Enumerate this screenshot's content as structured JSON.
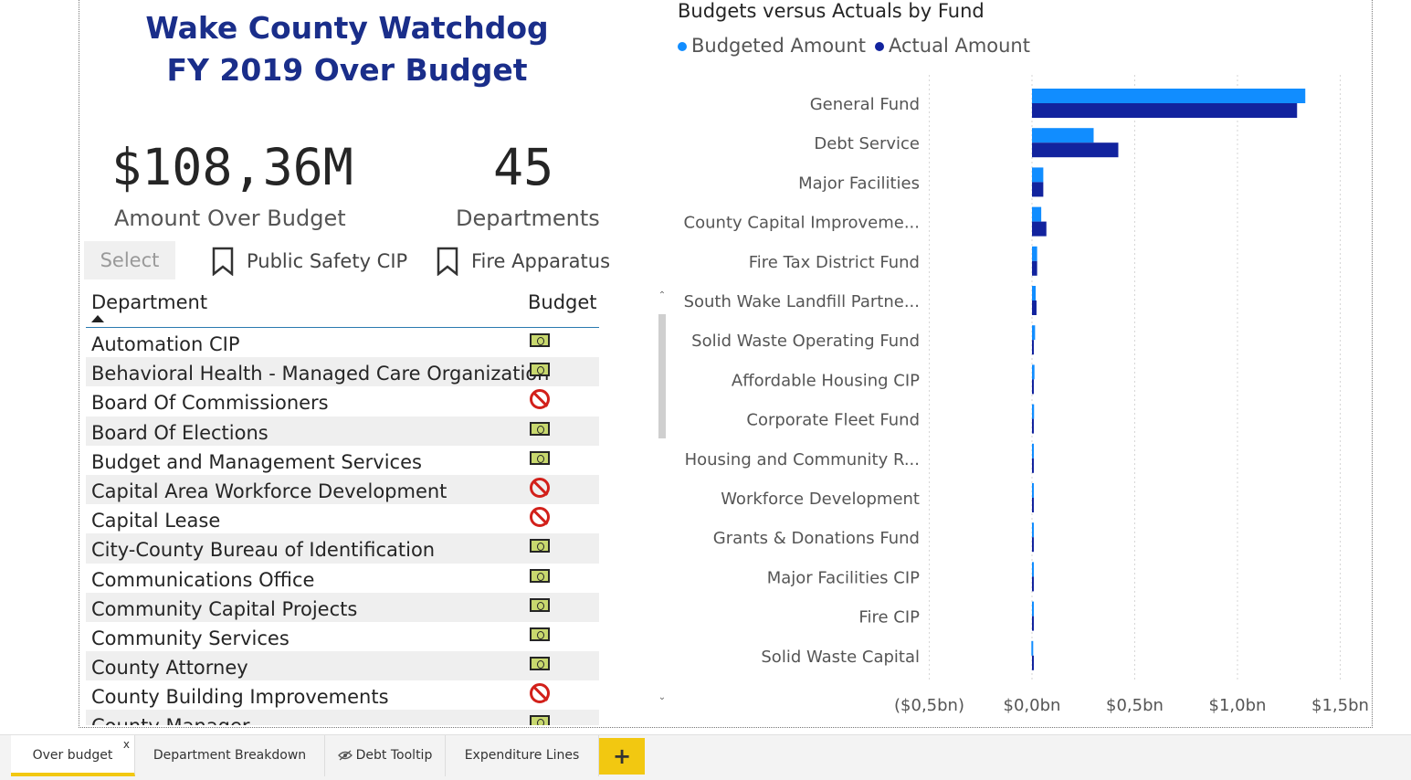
{
  "report": {
    "title_line1": "Wake County Watchdog",
    "title_line2": "FY 2019 Over Budget"
  },
  "kpis": {
    "amount_value": "$108,36M",
    "amount_label": "Amount Over Budget",
    "departments_value": "45",
    "departments_label": "Departments"
  },
  "controls": {
    "select_label": "Select",
    "bookmark1": "Public Safety CIP",
    "bookmark2": "Fire Apparatus"
  },
  "table": {
    "col_department": "Department",
    "col_budget": "Budget",
    "rows": [
      {
        "dept": "Automation CIP",
        "status": "money"
      },
      {
        "dept": "Behavioral Health - Managed Care Organization",
        "status": "money"
      },
      {
        "dept": "Board Of Commissioners",
        "status": "no"
      },
      {
        "dept": "Board Of Elections",
        "status": "money"
      },
      {
        "dept": "Budget and Management Services",
        "status": "money"
      },
      {
        "dept": "Capital Area Workforce Development",
        "status": "no"
      },
      {
        "dept": "Capital Lease",
        "status": "no"
      },
      {
        "dept": "City-County Bureau of Identification",
        "status": "money"
      },
      {
        "dept": "Communications Office",
        "status": "money"
      },
      {
        "dept": "Community Capital Projects",
        "status": "money"
      },
      {
        "dept": "Community Services",
        "status": "money"
      },
      {
        "dept": "County Attorney",
        "status": "money"
      },
      {
        "dept": "County Building Improvements",
        "status": "no"
      },
      {
        "dept": "County Manager",
        "status": "money"
      }
    ]
  },
  "chart": {
    "title": "Budgets versus Actuals by Fund",
    "legend_budget": "Budgeted Amount",
    "legend_actual": "Actual Amount"
  },
  "colors": {
    "budget": "#118dff",
    "actual": "#12239e",
    "title": "#1a2e8a",
    "tab_accent": "#f2c811"
  },
  "chart_data": {
    "type": "bar",
    "orientation": "horizontal",
    "title": "Budgets versus Actuals by Fund",
    "categories": [
      "General Fund",
      "Debt Service",
      "Major Facilities",
      "County Capital Improveme...",
      "Fire Tax District Fund",
      "South Wake Landfill Partne...",
      "Solid Waste Operating Fund",
      "Affordable Housing CIP",
      "Corporate Fleet Fund",
      "Housing and Community R...",
      "Workforce Development",
      "Grants & Donations Fund",
      "Major Facilities CIP",
      "Fire CIP",
      "Solid Waste Capital"
    ],
    "series": [
      {
        "name": "Budgeted Amount",
        "values": [
          1.33,
          0.3,
          0.055,
          0.045,
          0.025,
          0.018,
          0.015,
          0.012,
          0.01,
          0.008,
          0.006,
          0.005,
          0.004,
          0.003,
          -0.003
        ]
      },
      {
        "name": "Actual Amount",
        "values": [
          1.29,
          0.42,
          0.055,
          0.07,
          0.025,
          0.022,
          0.008,
          0.004,
          0.004,
          0.004,
          0.003,
          0.003,
          0.002,
          0.002,
          0.002
        ]
      }
    ],
    "xticks": [
      -0.5,
      0.0,
      0.5,
      1.0,
      1.5
    ],
    "xtick_labels": [
      "($0,5bn)",
      "$0,0bn",
      "$0,5bn",
      "$1,0bn",
      "$1,5bn"
    ],
    "xlim": [
      -0.5,
      1.5
    ],
    "grid": true
  },
  "tabs": [
    {
      "label": "Over budget",
      "close": "x",
      "active": true
    },
    {
      "label": "Department Breakdown",
      "active": false
    },
    {
      "label": "Debt Tooltip",
      "active": false,
      "hidden": true
    },
    {
      "label": "Expenditure Lines",
      "active": false
    }
  ],
  "add_tab_label": "+"
}
